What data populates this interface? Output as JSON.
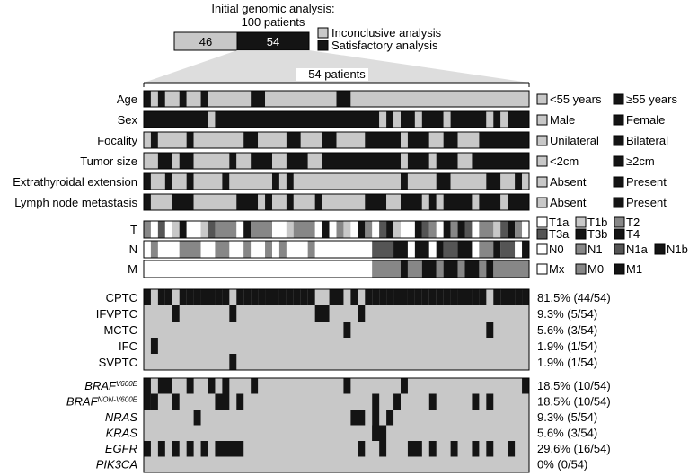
{
  "header": {
    "title_line1": "Initial genomic analysis:",
    "title_line2": "100 patients",
    "inconclusive_count": "46",
    "satisfactory_count": "54",
    "legend": {
      "inconclusive": "Inconclusive analysis",
      "satisfactory": "Satisfactory analysis"
    },
    "subset_label": "54 patients"
  },
  "colors": {
    "black": "#141414",
    "light": "#c8c8c8",
    "mid": "#878787",
    "dark": "#555555",
    "white": "#ffffff"
  },
  "clinical": {
    "rows": [
      {
        "label": "Age",
        "legend": [
          {
            "color": "light",
            "text": "<55 years"
          },
          {
            "color": "black",
            "text": "≥55 years"
          }
        ]
      },
      {
        "label": "Sex",
        "legend": [
          {
            "color": "light",
            "text": "Male"
          },
          {
            "color": "black",
            "text": "Female"
          }
        ]
      },
      {
        "label": "Focality",
        "legend": [
          {
            "color": "light",
            "text": "Unilateral"
          },
          {
            "color": "black",
            "text": "Bilateral"
          }
        ]
      },
      {
        "label": "Tumor size",
        "legend": [
          {
            "color": "light",
            "text": "<2cm"
          },
          {
            "color": "black",
            "text": "≥2cm"
          }
        ]
      },
      {
        "label": "Extrathyroidal extension",
        "legend": [
          {
            "color": "light",
            "text": "Absent"
          },
          {
            "color": "black",
            "text": "Present"
          }
        ]
      },
      {
        "label": "Lymph node metastasis",
        "legend": [
          {
            "color": "light",
            "text": "Absent"
          },
          {
            "color": "black",
            "text": "Present"
          }
        ]
      }
    ]
  },
  "tnm": {
    "rows": [
      {
        "label": "T"
      },
      {
        "label": "N"
      },
      {
        "label": "M"
      }
    ],
    "legend_T": [
      {
        "color": "white",
        "text": "T1a"
      },
      {
        "color": "light",
        "text": "T1b"
      },
      {
        "color": "mid",
        "text": "T2"
      },
      {
        "color": "dark",
        "text": "T3a"
      },
      {
        "color": "black",
        "text": "T3b"
      },
      {
        "color": "black",
        "text": "T4"
      }
    ],
    "legend_N": [
      {
        "color": "white",
        "text": "N0"
      },
      {
        "color": "mid",
        "text": "N1"
      },
      {
        "color": "dark",
        "text": "N1a"
      },
      {
        "color": "black",
        "text": "N1b"
      }
    ],
    "legend_M": [
      {
        "color": "white",
        "text": "Mx"
      },
      {
        "color": "mid",
        "text": "M0"
      },
      {
        "color": "black",
        "text": "M1"
      }
    ]
  },
  "histology": {
    "rows": [
      {
        "label": "CPTC",
        "stat": "81.5% (44/54)"
      },
      {
        "label": "IFVPTC",
        "stat": "9.3% (5/54)"
      },
      {
        "label": "MCTC",
        "stat": "5.6% (3/54)"
      },
      {
        "label": "IFC",
        "stat": "1.9% (1/54)"
      },
      {
        "label": "SVPTC",
        "stat": "1.9% (1/54)"
      }
    ]
  },
  "mutations": {
    "rows": [
      {
        "gene": "BRAF",
        "sup": "V600E",
        "stat": "18.5% (10/54)"
      },
      {
        "gene": "BRAF",
        "sup": "NON-V600E",
        "stat": "18.5% (10/54)"
      },
      {
        "gene": "NRAS",
        "sup": "",
        "stat": "9.3% (5/54)"
      },
      {
        "gene": "KRAS",
        "sup": "",
        "stat": "5.6% (3/54)"
      },
      {
        "gene": "EGFR",
        "sup": "",
        "stat": "29.6% (16/54)"
      },
      {
        "gene": "PIK3CA",
        "sup": "",
        "stat": "0% (0/54)"
      }
    ]
  }
}
